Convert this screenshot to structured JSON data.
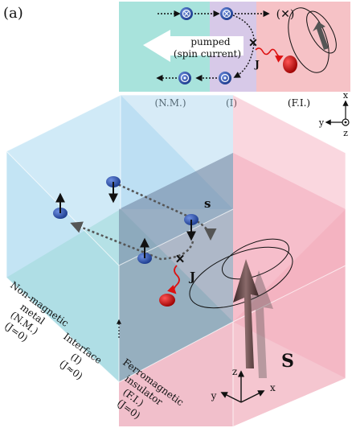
{
  "panel_label": "(a)",
  "inset": {
    "current_line1": "pumped",
    "current_line2": "(spin current)",
    "exchange_label": "J",
    "region_nm": "(N.M.)",
    "region_i": "(I)",
    "region_fi": "(F.I.)",
    "lost_spin": "(✕)",
    "axes": {
      "x": "x",
      "y": "y",
      "z": "z"
    },
    "colors": {
      "nm": "#a8e3dc",
      "i": "#d7c9e8",
      "fi": "#f6c2c6"
    }
  },
  "main": {
    "spin_label": "s",
    "exchange_label": "J",
    "magnetization_label": "S",
    "nm_label": {
      "l1": "Non-magnetic",
      "l2": "metal",
      "l3": "(N.M.)",
      "l4": "(J=0)"
    },
    "i_label": {
      "l1": "Interface",
      "l2": "(I)",
      "l3": "(J≈0)"
    },
    "fi_label": {
      "l1": "Ferromagnetic",
      "l2": "insulator",
      "l3": "(F.I.)",
      "l4": "(J=0)"
    },
    "axes": {
      "z": "z",
      "y": "y",
      "x": "x"
    },
    "colors": {
      "nm": "#8ecae6",
      "fi": "#f4a6b8",
      "spin": "#2b4fa8",
      "local": "#cc1111"
    }
  }
}
